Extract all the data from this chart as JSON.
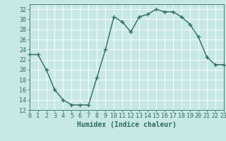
{
  "x": [
    0,
    1,
    2,
    3,
    4,
    5,
    6,
    7,
    8,
    9,
    10,
    11,
    12,
    13,
    14,
    15,
    16,
    17,
    18,
    19,
    20,
    21,
    22,
    23
  ],
  "y": [
    23,
    23,
    20,
    16,
    14,
    13,
    13,
    13,
    18.5,
    24,
    30.5,
    29.5,
    27.5,
    30.5,
    31,
    32,
    31.5,
    31.5,
    30.5,
    29,
    26.5,
    22.5,
    21,
    21
  ],
  "line_color": "#2e6b5e",
  "marker": "+",
  "marker_size": 4,
  "xlabel": "Humidex (Indice chaleur)",
  "ylim": [
    12,
    33
  ],
  "xlim": [
    0,
    23
  ],
  "yticks": [
    12,
    14,
    16,
    18,
    20,
    22,
    24,
    26,
    28,
    30,
    32
  ],
  "xticks": [
    0,
    1,
    2,
    3,
    4,
    5,
    6,
    7,
    8,
    9,
    10,
    11,
    12,
    13,
    14,
    15,
    16,
    17,
    18,
    19,
    20,
    21,
    22,
    23
  ],
  "background_color": "#c8e8e8",
  "grid_color": "#ffffff",
  "xlabel_fontsize": 7,
  "tick_fontsize": 6,
  "linewidth": 1.0
}
